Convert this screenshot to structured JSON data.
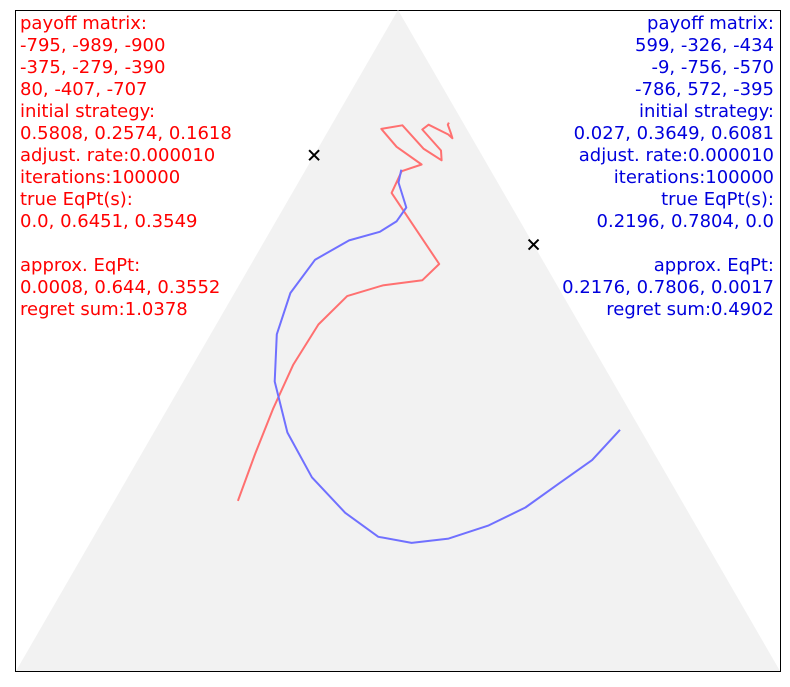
{
  "chart_data": {
    "type": "line",
    "title": "",
    "xlabel": "",
    "ylabel": "",
    "grid": false,
    "colors": {
      "player1": "#ff0000",
      "player1_line": "#ff7070",
      "player2": "#0000dd",
      "player2_line": "#7070ff",
      "simplex": "#f2f2f2",
      "frame": "#000000",
      "marker": "#000000"
    },
    "panels": {
      "left": {
        "lines": [
          "payoff matrix:",
          "-795, -989, -900",
          "-375, -279, -390",
          "80, -407, -707",
          "initial strategy:",
          "0.5808, 0.2574, 0.1618",
          "adjust. rate:0.000010",
          "iterations:100000",
          "true EqPt(s):",
          "0.0, 0.6451, 0.3549",
          "",
          "approx. EqPt:",
          "0.0008, 0.644, 0.3552",
          "regret sum:1.0378"
        ]
      },
      "right": {
        "lines": [
          "payoff matrix:",
          "599, -326, -434",
          "-9, -756, -570",
          "-786, 572, -395",
          "initial strategy:",
          "0.027, 0.3649, 0.6081",
          "adjust. rate:0.000010",
          "iterations:100000",
          "true EqPt(s):",
          "0.2196, 0.7804, 0.0",
          "",
          "approx. EqPt:",
          "0.2176, 0.7806, 0.0017",
          "regret sum:0.4902"
        ]
      }
    },
    "series": [
      {
        "player": "left",
        "start": [
          0.5808,
          0.2574,
          0.1618
        ],
        "equilibrium": [
          0.0,
          0.6451,
          0.3549
        ],
        "path": [
          [
            0.5808,
            0.2574,
            0.1618
          ],
          [
            0.5235,
            0.3275,
            0.149
          ],
          [
            0.4645,
            0.3974,
            0.1381
          ],
          [
            0.4053,
            0.4635,
            0.1312
          ],
          [
            0.3421,
            0.5242,
            0.1337
          ],
          [
            0.2829,
            0.5672,
            0.1499
          ],
          [
            0.2282,
            0.5833,
            0.1885
          ],
          [
            0.1724,
            0.5913,
            0.2363
          ],
          [
            0.1382,
            0.6158,
            0.246
          ],
          [
            0.1467,
            0.7233,
            0.13
          ],
          [
            0.1171,
            0.7562,
            0.1267
          ],
          [
            0.0859,
            0.7663,
            0.1478
          ],
          [
            0.1053,
            0.7931,
            0.1016
          ],
          [
            0.1118,
            0.8201,
            0.0681
          ],
          [
            0.0815,
            0.8256,
            0.0929
          ],
          [
            0.0716,
            0.7903,
            0.1381
          ],
          [
            0.0566,
            0.7726,
            0.1708
          ],
          [
            0.05,
            0.7875,
            0.1625
          ],
          [
            0.0586,
            0.8192,
            0.1222
          ],
          [
            0.0467,
            0.8265,
            0.1268
          ],
          [
            0.0284,
            0.8116,
            0.16
          ],
          [
            0.0258,
            0.8061,
            0.1681
          ],
          [
            0.0239,
            0.8143,
            0.1618
          ],
          [
            0.0216,
            0.8264,
            0.152
          ],
          [
            0.0185,
            0.8297,
            0.1518
          ]
        ]
      },
      {
        "player": "right",
        "start": [
          0.027,
          0.3649,
          0.6081
        ],
        "equilibrium": [
          0.2196,
          0.7804,
          0.0
        ],
        "path": [
          [
            0.027,
            0.3649,
            0.6081
          ],
          [
            0.0864,
            0.3191,
            0.5945
          ],
          [
            0.148,
            0.2834,
            0.5686
          ],
          [
            0.2096,
            0.2474,
            0.543
          ],
          [
            0.2712,
            0.2202,
            0.5086
          ],
          [
            0.3336,
            0.2003,
            0.4661
          ],
          [
            0.3853,
            0.1938,
            0.4209
          ],
          [
            0.4243,
            0.2031,
            0.3726
          ],
          [
            0.4494,
            0.2393,
            0.3113
          ],
          [
            0.4661,
            0.2931,
            0.2408
          ],
          [
            0.4643,
            0.3608,
            0.1749
          ],
          [
            0.4425,
            0.4379,
            0.1196
          ],
          [
            0.404,
            0.5094,
            0.0866
          ],
          [
            0.3549,
            0.5719,
            0.0732
          ],
          [
            0.2973,
            0.6223,
            0.0804
          ],
          [
            0.2382,
            0.6515,
            0.1103
          ],
          [
            0.1916,
            0.6645,
            0.1439
          ],
          [
            0.1618,
            0.6802,
            0.158
          ],
          [
            0.1385,
            0.7012,
            0.1603
          ],
          [
            0.1298,
            0.739,
            0.1312
          ],
          [
            0.1165,
            0.7584,
            0.1251
          ]
        ]
      }
    ]
  }
}
